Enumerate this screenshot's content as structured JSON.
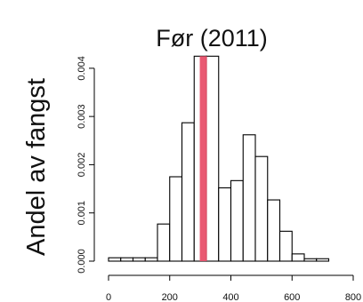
{
  "chart_data": {
    "type": "bar",
    "title": "Før (2011)",
    "xlabel": "",
    "ylabel": "Andel av fangst",
    "xlim": [
      0,
      800
    ],
    "ylim": [
      0,
      0.0042
    ],
    "bin_width": 40,
    "bins": [
      {
        "x0": 0,
        "x1": 40,
        "value": 7e-05
      },
      {
        "x0": 40,
        "x1": 80,
        "value": 7e-05
      },
      {
        "x0": 80,
        "x1": 120,
        "value": 7e-05
      },
      {
        "x0": 120,
        "x1": 160,
        "value": 7e-05
      },
      {
        "x0": 160,
        "x1": 200,
        "value": 0.00077
      },
      {
        "x0": 200,
        "x1": 240,
        "value": 0.00175
      },
      {
        "x0": 240,
        "x1": 280,
        "value": 0.00287
      },
      {
        "x0": 280,
        "x1": 320,
        "value": 0.00425
      },
      {
        "x0": 320,
        "x1": 360,
        "value": 0.00425
      },
      {
        "x0": 360,
        "x1": 400,
        "value": 0.00152
      },
      {
        "x0": 400,
        "x1": 440,
        "value": 0.00167
      },
      {
        "x0": 440,
        "x1": 480,
        "value": 0.00262
      },
      {
        "x0": 480,
        "x1": 520,
        "value": 0.00217
      },
      {
        "x0": 520,
        "x1": 560,
        "value": 0.00127
      },
      {
        "x0": 560,
        "x1": 600,
        "value": 0.00062
      },
      {
        "x0": 600,
        "x1": 640,
        "value": 0.00015
      },
      {
        "x0": 640,
        "x1": 680,
        "value": 5e-05
      },
      {
        "x0": 680,
        "x1": 720,
        "value": 5e-05
      }
    ],
    "reference_line": {
      "x": 310,
      "color": "#e8506a"
    },
    "x_ticks": [
      "0",
      "200",
      "400",
      "600",
      "800"
    ],
    "x_tick_values": [
      0,
      200,
      400,
      600,
      800
    ],
    "y_ticks": [
      "0.000",
      "0.001",
      "0.002",
      "0.003",
      "0.004"
    ],
    "y_tick_values": [
      0,
      0.001,
      0.002,
      0.003,
      0.004
    ],
    "colors": {
      "bar_fill": "#ffffff",
      "bar_stroke": "#000000",
      "highlight": "#e8506a"
    }
  }
}
